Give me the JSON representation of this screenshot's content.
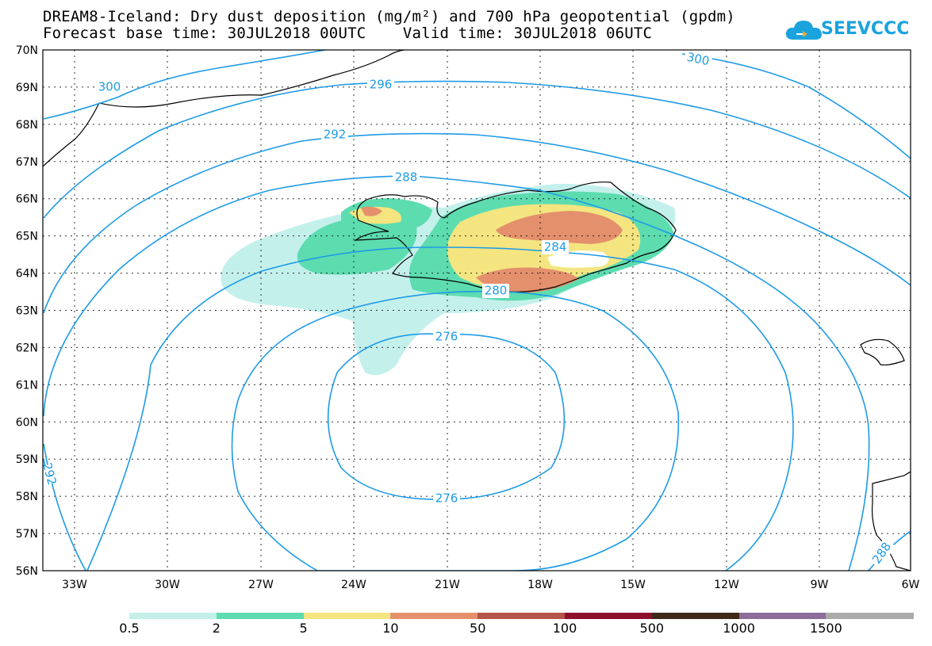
{
  "header": {
    "title_line1": "DREAM8-Iceland: Dry dust deposition (mg/m²) and 700 hPa geopotential (gpdm)",
    "title_line2": "Forecast base time: 30JUL2018 00UTC    Valid time: 30JUL2018 06UTC"
  },
  "logo": {
    "text": "SEEVCCC",
    "color": "#1ba3dd"
  },
  "map": {
    "lat_labels": [
      "70N",
      "69N",
      "68N",
      "67N",
      "66N",
      "65N",
      "64N",
      "63N",
      "62N",
      "61N",
      "60N",
      "59N",
      "58N",
      "57N",
      "56N"
    ],
    "lon_labels": [
      "33W",
      "30W",
      "27W",
      "24W",
      "21W",
      "18W",
      "15W",
      "12W",
      "9W",
      "6W"
    ],
    "contour_labels": {
      "c300a": "300",
      "c300b": "300",
      "c296": "296",
      "c292": "292",
      "c288": "288",
      "c284": "284",
      "c280": "280",
      "c276a": "276",
      "c276b": "276",
      "c292left": "292",
      "c288right": "288"
    },
    "contour_color": "#1e9be6"
  },
  "legend": {
    "labels": [
      "0.5",
      "2",
      "5",
      "10",
      "50",
      "100",
      "500",
      "1000",
      "1500"
    ],
    "colors": [
      "#c4f0ec",
      "#5ddcb0",
      "#f4e580",
      "#e4906c",
      "#b55448",
      "#8e0f2c",
      "#3e2a1a",
      "#8b6d9a",
      "#ababab"
    ]
  }
}
